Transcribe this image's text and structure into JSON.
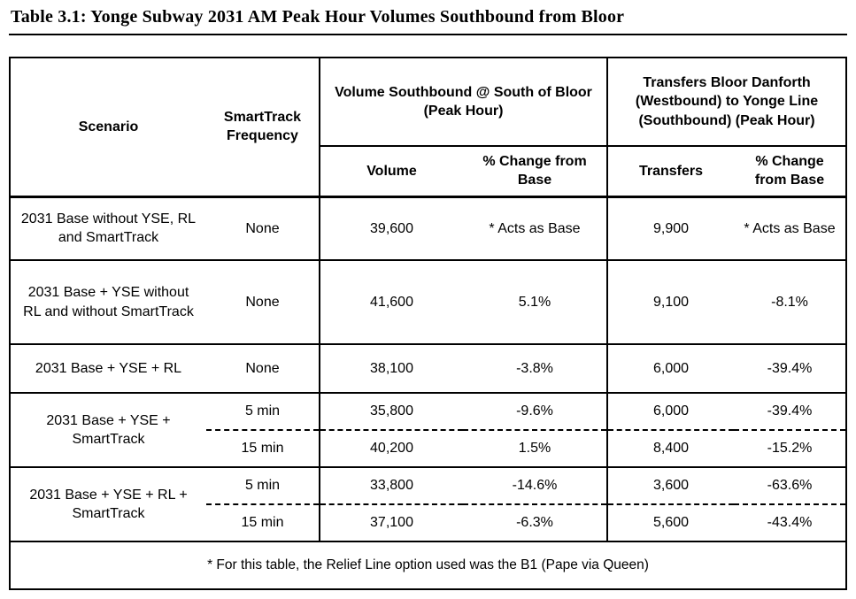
{
  "title": "Table 3.1: Yonge Subway 2031 AM Peak Hour Volumes Southbound from Bloor",
  "table": {
    "headers": {
      "scenario": "Scenario",
      "frequency": "SmartTrack Frequency",
      "volume_group": "Volume Southbound @ South of Bloor (Peak Hour)",
      "transfers_group": "Transfers Bloor Danforth (Westbound) to Yonge Line (Southbound) (Peak Hour)",
      "volume": "Volume",
      "volume_pct": "% Change from Base",
      "transfers": "Transfers",
      "transfers_pct": "% Change from Base"
    },
    "rows": [
      {
        "scenario": "2031 Base without YSE, RL and SmartTrack",
        "frequency": "None",
        "volume": "39,600",
        "volume_pct": "* Acts as Base",
        "transfers": "9,900",
        "transfers_pct": "* Acts as Base"
      },
      {
        "scenario": "2031 Base + YSE without RL and without SmartTrack",
        "frequency": "None",
        "volume": "41,600",
        "volume_pct": "5.1%",
        "transfers": "9,100",
        "transfers_pct": "-8.1%"
      },
      {
        "scenario": "2031 Base + YSE + RL",
        "frequency": "None",
        "volume": "38,100",
        "volume_pct": "-3.8%",
        "transfers": "6,000",
        "transfers_pct": "-39.4%"
      },
      {
        "scenario": "2031 Base + YSE + SmartTrack",
        "sub": [
          {
            "frequency": "5 min",
            "volume": "35,800",
            "volume_pct": "-9.6%",
            "transfers": "6,000",
            "transfers_pct": "-39.4%"
          },
          {
            "frequency": "15 min",
            "volume": "40,200",
            "volume_pct": "1.5%",
            "transfers": "8,400",
            "transfers_pct": "-15.2%"
          }
        ]
      },
      {
        "scenario": "2031 Base + YSE + RL + SmartTrack",
        "sub": [
          {
            "frequency": "5 min",
            "volume": "33,800",
            "volume_pct": "-14.6%",
            "transfers": "3,600",
            "transfers_pct": "-63.6%"
          },
          {
            "frequency": "15 min",
            "volume": "37,100",
            "volume_pct": "-6.3%",
            "transfers": "5,600",
            "transfers_pct": "-43.4%"
          }
        ]
      }
    ],
    "footnote": "* For this table, the Relief Line option used was the B1 (Pape via Queen)"
  }
}
